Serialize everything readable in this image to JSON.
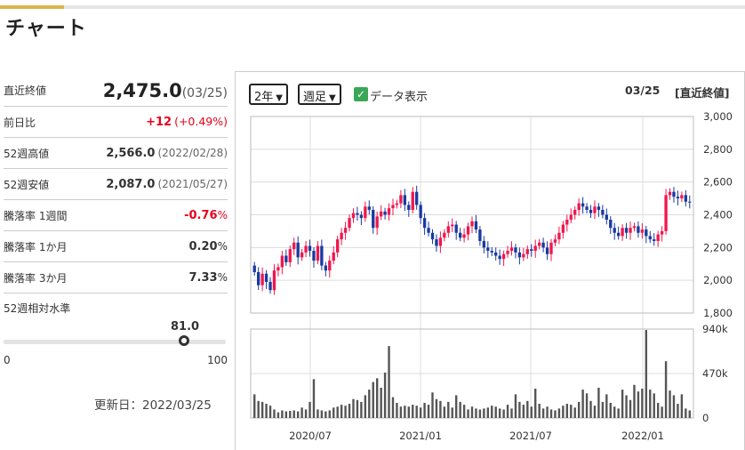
{
  "page_title": "チャート",
  "stats": [
    {
      "label": "直近終値",
      "value": "2,475.0",
      "sub": "(03/25)"
    },
    {
      "label": "前日比",
      "value": "+12",
      "sub": "(+0.49%)"
    },
    {
      "label": "52週高値",
      "value": "2,566.0",
      "sub": "(2022/02/28)"
    },
    {
      "label": "52週安値",
      "value": "2,087.0",
      "sub": "(2021/05/27)"
    },
    {
      "label": "騰落率 1週間",
      "value": "-0.76",
      "unit": "%"
    },
    {
      "label": "騰落率 1か月",
      "value": "0.20",
      "unit": "%"
    },
    {
      "label": "騰落率 3か月",
      "value": "7.33",
      "unit": "%"
    }
  ],
  "level": {
    "label": "52週相対水準",
    "value": "81.0",
    "fraction": 0.81,
    "min": "0",
    "max": "100"
  },
  "updated": "更新日：2022/03/25",
  "controls": {
    "period": "2年",
    "interval": "週足",
    "show_data_label": "データ表示",
    "show_data_checked": true
  },
  "chart_header": {
    "date": "03/25",
    "kind": "[直近終値]"
  },
  "colors": {
    "up": "#f0174e",
    "down": "#1a3aa0",
    "volume": "#555555",
    "accent": "#d9b64a",
    "check": "#3aa757"
  },
  "chart_data": {
    "type": "candlestick",
    "x_tick_labels": [
      "2020/07",
      "2021/01",
      "2021/07",
      "2022/01"
    ],
    "price_axis": {
      "ylim": [
        1800,
        3000
      ],
      "ticks": [
        "3,000",
        "2,800",
        "2,600",
        "2,400",
        "2,200",
        "2,000",
        "1,800"
      ]
    },
    "volume_axis": {
      "ylim": [
        0,
        940000
      ],
      "ticks": [
        "940k",
        "470k",
        "0"
      ]
    },
    "close": [
      2050,
      1970,
      2040,
      1990,
      1940,
      2060,
      2080,
      2150,
      2110,
      2190,
      2230,
      2140,
      2170,
      2210,
      2180,
      2120,
      2210,
      2090,
      2060,
      2120,
      2170,
      2250,
      2290,
      2320,
      2380,
      2410,
      2400,
      2380,
      2450,
      2430,
      2320,
      2390,
      2420,
      2400,
      2440,
      2460,
      2470,
      2520,
      2460,
      2430,
      2540,
      2460,
      2380,
      2320,
      2290,
      2250,
      2210,
      2260,
      2290,
      2330,
      2340,
      2290,
      2260,
      2280,
      2330,
      2360,
      2310,
      2240,
      2200,
      2180,
      2170,
      2150,
      2130,
      2160,
      2180,
      2200,
      2170,
      2140,
      2160,
      2190,
      2180,
      2210,
      2230,
      2200,
      2160,
      2230,
      2250,
      2290,
      2340,
      2370,
      2400,
      2430,
      2470,
      2450,
      2430,
      2410,
      2450,
      2430,
      2400,
      2370,
      2320,
      2290,
      2270,
      2320,
      2290,
      2320,
      2330,
      2290,
      2310,
      2270,
      2250,
      2240,
      2280,
      2300,
      2520,
      2540,
      2510,
      2500,
      2520,
      2480,
      2475
    ],
    "volume": [
      250000,
      180000,
      170000,
      150000,
      130000,
      90000,
      60000,
      80000,
      70000,
      75000,
      80000,
      70000,
      110000,
      90000,
      170000,
      410000,
      90000,
      80000,
      70000,
      80000,
      110000,
      120000,
      140000,
      130000,
      150000,
      200000,
      190000,
      170000,
      240000,
      300000,
      380000,
      420000,
      320000,
      480000,
      760000,
      220000,
      160000,
      120000,
      130000,
      120000,
      140000,
      130000,
      110000,
      160000,
      140000,
      270000,
      200000,
      180000,
      120000,
      170000,
      110000,
      240000,
      170000,
      140000,
      90000,
      120000,
      100000,
      90000,
      100000,
      110000,
      130000,
      120000,
      100000,
      90000,
      140000,
      100000,
      250000,
      170000,
      140000,
      180000,
      120000,
      310000,
      150000,
      100000,
      120000,
      90000,
      80000,
      100000,
      130000,
      150000,
      140000,
      110000,
      170000,
      300000,
      260000,
      180000,
      130000,
      320000,
      170000,
      250000,
      160000,
      120000,
      100000,
      300000,
      240000,
      190000,
      350000,
      280000,
      310000,
      930000,
      300000,
      260000,
      160000,
      120000,
      600000,
      290000,
      240000,
      150000,
      250000,
      100000,
      80000
    ]
  }
}
